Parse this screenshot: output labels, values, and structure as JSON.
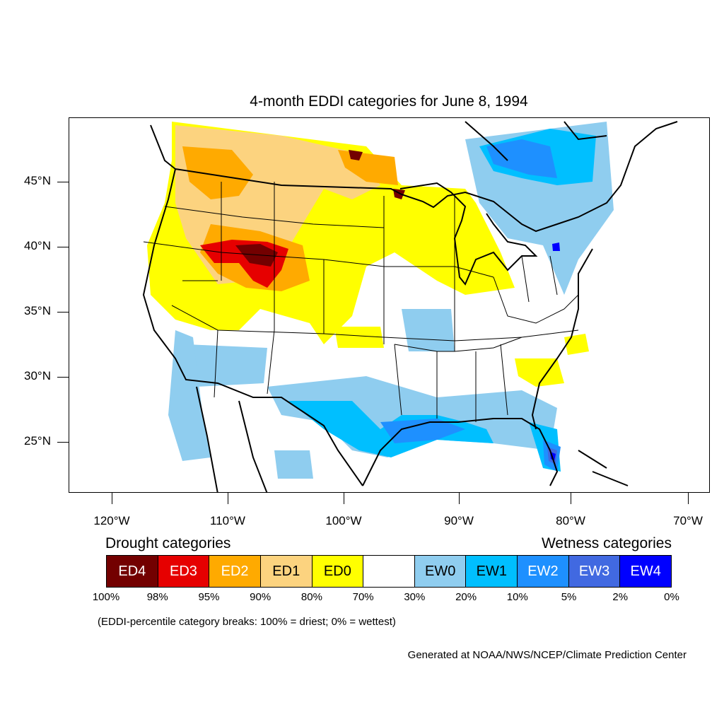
{
  "title": "4-month EDDI categories for June 8, 1994",
  "lat_labels": [
    "45°N",
    "40°N",
    "35°N",
    "30°N",
    "25°N"
  ],
  "lon_labels": [
    "120°W",
    "110°W",
    "100°W",
    "90°W",
    "80°W",
    "70°W"
  ],
  "legend": {
    "drought_heading": "Drought categories",
    "wetness_heading": "Wetness categories",
    "categories": [
      {
        "label": "ED4",
        "color": "#730000",
        "text": "#ffffff"
      },
      {
        "label": "ED3",
        "color": "#e60000",
        "text": "#ffffff"
      },
      {
        "label": "ED2",
        "color": "#ffaa00",
        "text": "#ffffff"
      },
      {
        "label": "ED1",
        "color": "#fcd37f",
        "text": "#000000"
      },
      {
        "label": "ED0",
        "color": "#ffff00",
        "text": "#000000"
      },
      {
        "label": "",
        "color": "#ffffff",
        "text": "#000000"
      },
      {
        "label": "EW0",
        "color": "#8fcdef",
        "text": "#000000"
      },
      {
        "label": "EW1",
        "color": "#00bfff",
        "text": "#000000"
      },
      {
        "label": "EW2",
        "color": "#1e90ff",
        "text": "#ffffff"
      },
      {
        "label": "EW3",
        "color": "#4169e1",
        "text": "#ffffff"
      },
      {
        "label": "EW4",
        "color": "#0000ff",
        "text": "#ffffff"
      }
    ],
    "breaks": [
      "100%",
      "98%",
      "95%",
      "90%",
      "80%",
      "70%",
      "30%",
      "20%",
      "10%",
      "5%",
      "2%",
      "0%"
    ]
  },
  "note": "(EDDI-percentile category breaks: 100% = driest; 0% = wettest)",
  "credit": "Generated at NOAA/NWS/NCEP/Climate Prediction Center"
}
